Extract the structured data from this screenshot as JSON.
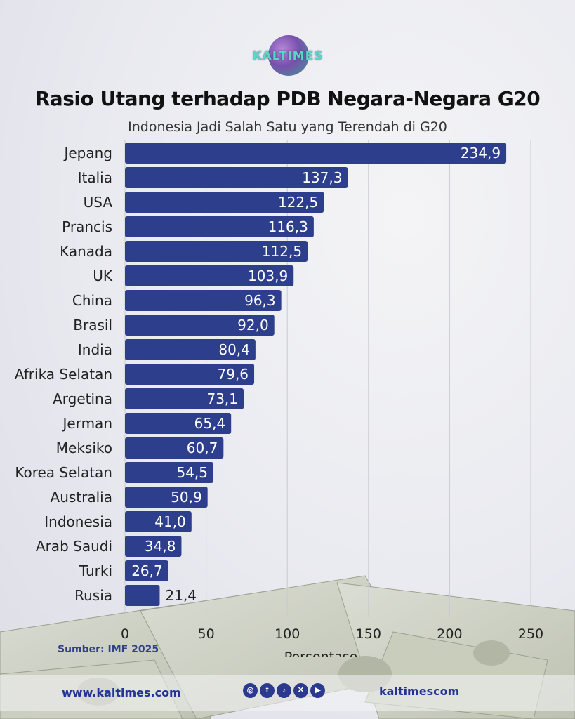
{
  "brand": {
    "logo_text": "KALTIMES"
  },
  "footer": {
    "source": "Sumber: IMF 2025",
    "website": "www.kaltimes.com",
    "handle": "kaltimescom",
    "social_icons": [
      "instagram-icon",
      "facebook-icon",
      "tiktok-icon",
      "x-icon",
      "youtube-icon"
    ]
  },
  "colors": {
    "bar": "#2d3f8c",
    "title": "#111111",
    "accent": "#23339a"
  },
  "chart_data": {
    "type": "bar",
    "orientation": "horizontal",
    "title": "Rasio Utang terhadap PDB Negara-Negara G20",
    "subtitle": "Indonesia Jadi Salah Satu yang Terendah di G20",
    "xlabel": "Persentase",
    "ylabel": "",
    "xlim": [
      0,
      260
    ],
    "xticks": [
      "0",
      "50",
      "100",
      "150",
      "200",
      "250"
    ],
    "xtick_values": [
      0,
      50,
      100,
      150,
      200,
      250
    ],
    "grid": "vertical",
    "categories": [
      "Jepang",
      "Italia",
      "USA",
      "Prancis",
      "Kanada",
      "UK",
      "China",
      "Brasil",
      "India",
      "Afrika Selatan",
      "Argetina",
      "Jerman",
      "Meksiko",
      "Korea Selatan",
      "Australia",
      "Indonesia",
      "Arab Saudi",
      "Turki",
      "Rusia"
    ],
    "values": [
      234.9,
      137.3,
      122.5,
      116.3,
      112.5,
      103.9,
      96.3,
      92.0,
      80.4,
      79.6,
      73.1,
      65.4,
      60.7,
      54.5,
      50.9,
      41.0,
      34.8,
      26.7,
      21.4
    ],
    "value_labels": [
      "234,9",
      "137,3",
      "122,5",
      "116,3",
      "112,5",
      "103,9",
      "96,3",
      "92,0",
      "80,4",
      "79,6",
      "73,1",
      "65,4",
      "60,7",
      "54,5",
      "50,9",
      "41,0",
      "34,8",
      "26,7",
      "21,4"
    ]
  }
}
